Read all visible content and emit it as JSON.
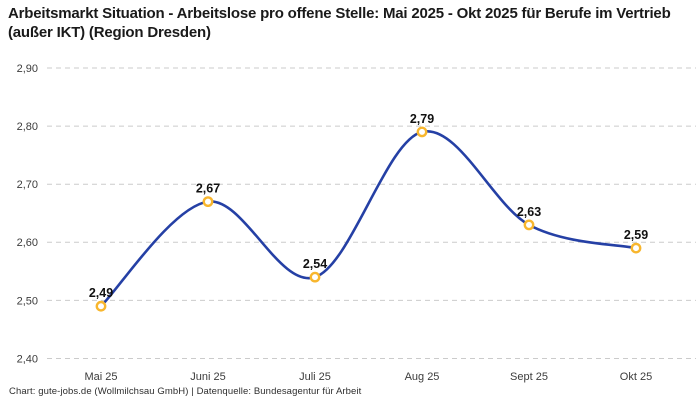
{
  "header": {
    "title": "Arbeitsmarkt Situation - Arbeitslose pro offene Stelle: Mai 2025 - Okt 2025 für Berufe im Vertrieb (außer IKT) (Region Dresden)"
  },
  "footer": {
    "attribution": "Chart: gute-jobs.de (Wollmilchsau GmbH) | Datenquelle: Bundesagentur für Arbeit"
  },
  "chart_data": {
    "type": "line",
    "title": "Arbeitsmarkt Situation - Arbeitslose pro offene Stelle: Mai 2025 - Okt 2025 für Berufe im Vertrieb (außer IKT) (Region Dresden)",
    "categories": [
      "Mai 25",
      "Juni 25",
      "Juli 25",
      "Aug 25",
      "Sept 25",
      "Okt 25"
    ],
    "values": [
      2.49,
      2.67,
      2.54,
      2.79,
      2.63,
      2.59
    ],
    "point_labels": [
      "2,49",
      "2,67",
      "2,54",
      "2,79",
      "2,63",
      "2,59"
    ],
    "xlabel": "",
    "ylabel": "",
    "ylim": [
      2.4,
      2.9
    ],
    "ytick_step": 0.1,
    "ytick_labels": [
      "2,40",
      "2,50",
      "2,60",
      "2,70",
      "2,80",
      "2,90"
    ],
    "grid": "horizontal-dashed",
    "legend": "none",
    "curve": "smooth",
    "colors": {
      "line": "#2540a5",
      "marker_ring": "#f8b62d",
      "marker_fill": "#ffffff",
      "gridline": "#cbcbcb",
      "axis_text": "#3c3c3c",
      "point_label_text": "#111111",
      "title_text": "#1a1a1a"
    }
  }
}
